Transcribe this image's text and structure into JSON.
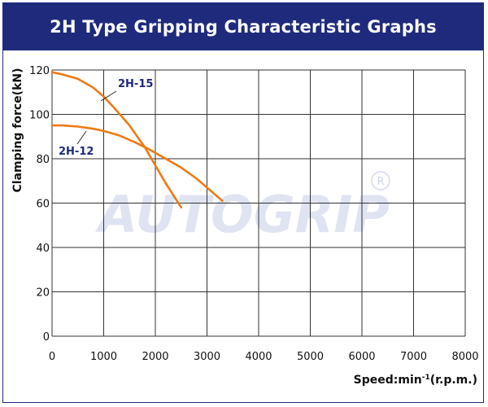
{
  "header": {
    "title": "2H Type Gripping Characteristic Graphs"
  },
  "watermark": {
    "text": "AUTOGRIP",
    "registered_mark": "R"
  },
  "colors": {
    "header_bg": "#1f2a7c",
    "series_line": "#ee7a14",
    "series_label": "#1f2a7c",
    "grid": "#333333"
  },
  "chart_data": {
    "type": "line",
    "title": "2H Type Gripping Characteristic Graphs",
    "xlabel_main": "Speed:min",
    "xlabel_sup": "-1",
    "xlabel_tail": "(r.p.m.)",
    "ylabel": "Clamping force(kN)",
    "xlim": [
      0,
      8000
    ],
    "ylim": [
      0,
      120
    ],
    "x_ticks": [
      0,
      1000,
      2000,
      3000,
      4000,
      5000,
      6000,
      7000,
      8000
    ],
    "y_ticks": [
      0,
      20,
      40,
      60,
      80,
      100,
      120
    ],
    "grid": true,
    "series": [
      {
        "name": "2H-15",
        "x": [
          0,
          200,
          500,
          800,
          1000,
          1200,
          1500,
          1800,
          2000,
          2200,
          2500
        ],
        "y": [
          119,
          118,
          116,
          112,
          108,
          103,
          95,
          85,
          77,
          69,
          58
        ]
      },
      {
        "name": "2H-12",
        "x": [
          0,
          200,
          500,
          800,
          1000,
          1300,
          1600,
          1900,
          2200,
          2500,
          2800,
          3100,
          3300
        ],
        "y": [
          95,
          95,
          94.5,
          93.5,
          92.5,
          90.5,
          87.5,
          84,
          80,
          76,
          71,
          65,
          61
        ]
      }
    ]
  }
}
